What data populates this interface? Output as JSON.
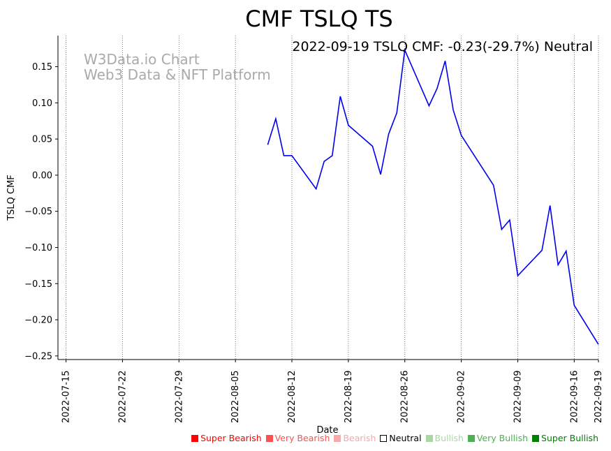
{
  "chart_data": {
    "type": "line",
    "title": "CMF TSLQ TS",
    "annotation": "2022-09-19 TSLQ CMF: -0.23(-29.7%) Neutral",
    "watermark": [
      "W3Data.io Chart",
      "Web3 Data & NFT Platform"
    ],
    "xlabel": "Date",
    "ylabel": "TSLQ CMF",
    "ylim": [
      -0.255,
      0.193
    ],
    "yticks": [
      0.15,
      0.1,
      0.05,
      0.0,
      -0.05,
      -0.1,
      -0.15,
      -0.2,
      -0.25
    ],
    "ytick_labels": [
      "0.15",
      "0.10",
      "0.05",
      "0.00",
      "−0.05",
      "−0.10",
      "−0.15",
      "−0.20",
      "−0.25"
    ],
    "xlim": [
      "2022-07-14",
      "2022-09-19"
    ],
    "xticks": [
      "2022-07-15",
      "2022-07-22",
      "2022-07-29",
      "2022-08-05",
      "2022-08-12",
      "2022-08-19",
      "2022-08-26",
      "2022-09-02",
      "2022-09-09",
      "2022-09-16",
      "2022-09-19"
    ],
    "grid": "x-dotted",
    "series": [
      {
        "name": "TSLQ CMF",
        "color": "#0000ee",
        "x": [
          "2022-08-09",
          "2022-08-10",
          "2022-08-11",
          "2022-08-12",
          "2022-08-15",
          "2022-08-16",
          "2022-08-17",
          "2022-08-18",
          "2022-08-19",
          "2022-08-22",
          "2022-08-23",
          "2022-08-24",
          "2022-08-25",
          "2022-08-26",
          "2022-08-29",
          "2022-08-30",
          "2022-08-31",
          "2022-09-01",
          "2022-09-02",
          "2022-09-06",
          "2022-09-07",
          "2022-09-08",
          "2022-09-09",
          "2022-09-12",
          "2022-09-13",
          "2022-09-14",
          "2022-09-15",
          "2022-09-16",
          "2022-09-19"
        ],
        "values": [
          0.042,
          0.078,
          0.027,
          0.027,
          -0.019,
          0.019,
          0.027,
          0.109,
          0.069,
          0.04,
          0.001,
          0.057,
          0.086,
          0.173,
          0.096,
          0.12,
          0.158,
          0.09,
          0.055,
          -0.014,
          -0.075,
          -0.062,
          -0.139,
          -0.104,
          -0.042,
          -0.124,
          -0.105,
          -0.18,
          -0.234
        ]
      }
    ],
    "legend": [
      {
        "label": "Super Bearish",
        "color": "#ff0000",
        "text_color": "#ff0000"
      },
      {
        "label": "Very Bearish",
        "color": "#ff5050",
        "text_color": "#ff5050"
      },
      {
        "label": "Bearish",
        "color": "#f7a8a8",
        "text_color": "#f7a8a8"
      },
      {
        "label": "Neutral",
        "color": "#ffffff",
        "text_color": "#000000"
      },
      {
        "label": "Bullish",
        "color": "#a8d8a0",
        "text_color": "#a8d8a0"
      },
      {
        "label": "Very Bullish",
        "color": "#4caf50",
        "text_color": "#4caf50"
      },
      {
        "label": "Super Bullish",
        "color": "#008000",
        "text_color": "#008000"
      }
    ]
  }
}
